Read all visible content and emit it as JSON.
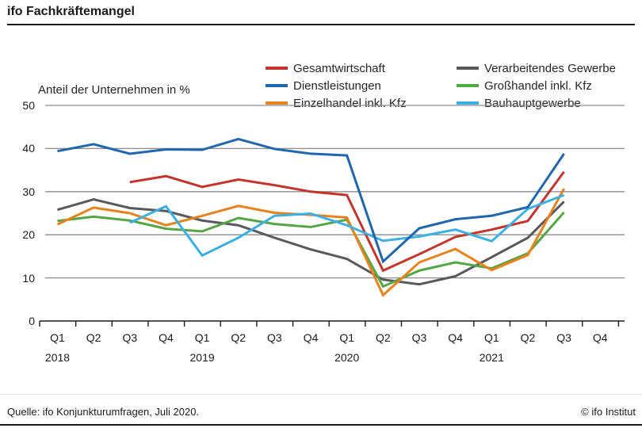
{
  "header": {
    "title": "ifo Fachkräftemangel"
  },
  "chart": {
    "axis_label": "Anteil der Unternehmen in %",
    "grid_color": "#8c8c8c",
    "axis_color": "#1a1a1a",
    "y_ticks": [
      0,
      10,
      20,
      30,
      40,
      50
    ],
    "x_quarter_labels": [
      "Q1",
      "Q2",
      "Q3",
      "Q4",
      "Q1",
      "Q2",
      "Q3",
      "Q4",
      "Q1",
      "Q2",
      "Q3",
      "Q4",
      "Q1",
      "Q2",
      "Q3",
      "Q4"
    ],
    "x_year_labels": [
      {
        "label": "2018",
        "at": 0
      },
      {
        "label": "2019",
        "at": 4
      },
      {
        "label": "2020",
        "at": 8
      },
      {
        "label": "2021",
        "at": 12
      }
    ]
  },
  "chart_data": {
    "type": "line",
    "title": "ifo Fachkräftemangel",
    "ylabel": "Anteil der Unternehmen in %",
    "ylim": [
      0,
      50
    ],
    "grid": true,
    "legend_position": "top",
    "legend_columns": [
      [
        0,
        1,
        2
      ],
      [
        3,
        4,
        5
      ]
    ],
    "categories": [
      "Q1 2018",
      "Q2 2018",
      "Q3 2018",
      "Q4 2018",
      "Q1 2019",
      "Q2 2019",
      "Q3 2019",
      "Q4 2019",
      "Q1 2020",
      "Q2 2020",
      "Q3 2020",
      "Q4 2020",
      "Q1 2021",
      "Q2 2021",
      "Q3 2021",
      "Q4 2021"
    ],
    "series": [
      {
        "name": "Gesamtwirtschaft",
        "color": "#c5342c",
        "z": 4,
        "values": [
          null,
          null,
          32.2,
          33.6,
          31.1,
          32.8,
          31.5,
          30.0,
          29.2,
          11.7,
          15.5,
          19.5,
          21.2,
          23.2,
          34.6,
          null
        ]
      },
      {
        "name": "Dienstleistungen",
        "color": "#2066ae",
        "z": 6,
        "values": [
          39.4,
          41.0,
          38.8,
          39.8,
          39.7,
          42.2,
          39.9,
          38.8,
          38.4,
          13.8,
          21.5,
          23.6,
          24.4,
          26.4,
          38.8,
          null
        ]
      },
      {
        "name": "Einzelhandel inkl. Kfz",
        "color": "#e8821d",
        "z": 3,
        "values": [
          22.4,
          26.3,
          25.0,
          22.2,
          24.4,
          26.7,
          25.1,
          24.6,
          24.0,
          6.0,
          13.6,
          16.7,
          11.8,
          15.3,
          30.7,
          null
        ]
      },
      {
        "name": "Verarbeitendes Gewerbe",
        "color": "#58595b",
        "z": 1,
        "values": [
          25.8,
          28.2,
          26.2,
          25.5,
          23.3,
          22.2,
          19.3,
          16.6,
          14.4,
          9.6,
          8.5,
          10.4,
          14.8,
          19.3,
          27.7,
          null
        ]
      },
      {
        "name": "Großhandel inkl. Kfz",
        "color": "#55a546",
        "z": 2,
        "values": [
          23.2,
          24.2,
          23.3,
          21.4,
          20.8,
          23.9,
          22.5,
          21.8,
          23.5,
          8.0,
          11.7,
          13.6,
          12.2,
          15.7,
          25.2,
          null
        ]
      },
      {
        "name": "Bauhauptgewerbe",
        "color": "#3cb0e5",
        "z": 5,
        "values": [
          null,
          null,
          22.8,
          26.6,
          15.2,
          19.3,
          24.4,
          24.9,
          22.2,
          18.6,
          19.6,
          21.2,
          18.5,
          26.0,
          29.2,
          null
        ]
      }
    ]
  },
  "footer": {
    "source": "Quelle: ifo Konjunkturumfragen, Juli 2020.",
    "copyright": "© ifo Institut"
  }
}
